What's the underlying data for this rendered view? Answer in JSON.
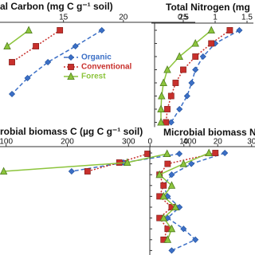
{
  "chart_data": [
    {
      "type": "line",
      "title": "al Carbon (mg C g⁻¹ soil)",
      "legend": "center",
      "categories": [
        null,
        null,
        null,
        null,
        null
      ],
      "xlim": [
        9.7,
        26
      ],
      "xticks": [
        15,
        20,
        25
      ],
      "series": [
        {
          "name": "Organic",
          "color": "#3b6fc6",
          "marker": "diamond",
          "line_style": "dashed",
          "values": [
            18.2,
            16.0,
            13.7,
            12.0,
            10.7
          ]
        },
        {
          "name": "Conventional",
          "color": "#c8302c",
          "marker": "square",
          "line_style": "dotted",
          "values": [
            14.7,
            12.7,
            10.7,
            null,
            null
          ]
        },
        {
          "name": "Forest",
          "color": "#8cc43c",
          "marker": "triangle",
          "line_style": "solid",
          "values": [
            12.1,
            10.3,
            null,
            null,
            null
          ]
        }
      ]
    },
    {
      "type": "line",
      "title": "Total Nitrogen (mg",
      "categories": [
        null,
        null,
        null,
        null,
        null,
        null,
        null,
        null
      ],
      "xlim": [
        0,
        1.6
      ],
      "xticks": [
        0.5,
        1,
        1.5
      ],
      "series": [
        {
          "color": "#3b6fc6",
          "marker": "diamond",
          "line_style": "dashed",
          "values": [
            1.38,
            1.0,
            0.81,
            0.69,
            0.63,
            0.56,
            0.44,
            0.31
          ]
        },
        {
          "color": "#c8302c",
          "marker": "square",
          "line_style": "dotted",
          "values": [
            1.23,
            0.94,
            0.69,
            0.5,
            0.38,
            0.31,
            0.25,
            0.23
          ]
        },
        {
          "color": "#8cc43c",
          "marker": "triangle",
          "line_style": "solid",
          "values": [
            0.94,
            0.69,
            0.44,
            0.25,
            0.19,
            0.16,
            0.15,
            0.15
          ]
        }
      ]
    },
    {
      "type": "line",
      "title": "robial biomass C (µg C g⁻¹ soil)",
      "categories": [
        null,
        null,
        null
      ],
      "xlim": [
        90,
        409
      ],
      "xticks": [
        100,
        200,
        300,
        400
      ],
      "series": [
        {
          "color": "#3b6fc6",
          "marker": "diamond",
          "line_style": "dashed",
          "values": [
            383,
            292,
            207
          ]
        },
        {
          "color": "#c8302c",
          "marker": "square",
          "line_style": "dotted",
          "values": [
            331,
            285,
            233
          ]
        },
        {
          "color": "#8cc43c",
          "marker": "triangle",
          "line_style": "solid",
          "values": [
            363,
            298,
            96
          ]
        }
      ]
    },
    {
      "type": "line",
      "title": "Microbial biomass N",
      "categories": [
        null,
        null,
        null,
        null,
        null,
        null,
        null,
        null,
        null,
        null
      ],
      "xlim": [
        -1,
        31
      ],
      "xticks": [
        0,
        10,
        20,
        30
      ],
      "series": [
        {
          "color": "#3b6fc6",
          "marker": "diamond",
          "line_style": "dashed",
          "values": [
            22.1,
            12.2,
            6.4,
            4.0,
            5.2,
            8.7,
            5.2,
            9.9,
            13.4,
            6.4
          ]
        },
        {
          "color": "#c8302c",
          "marker": "square",
          "line_style": "dotted",
          "values": [
            19.3,
            5.2,
            2.8,
            4.0,
            2.8,
            6.4,
            2.8,
            5.2,
            4.0,
            null
          ]
        },
        {
          "color": "#8cc43c",
          "marker": "triangle",
          "line_style": "solid",
          "values": [
            17.4,
            9.9,
            2.8,
            6.4,
            4.0,
            7.5,
            4.0,
            6.4,
            5.2,
            null
          ]
        }
      ]
    }
  ]
}
